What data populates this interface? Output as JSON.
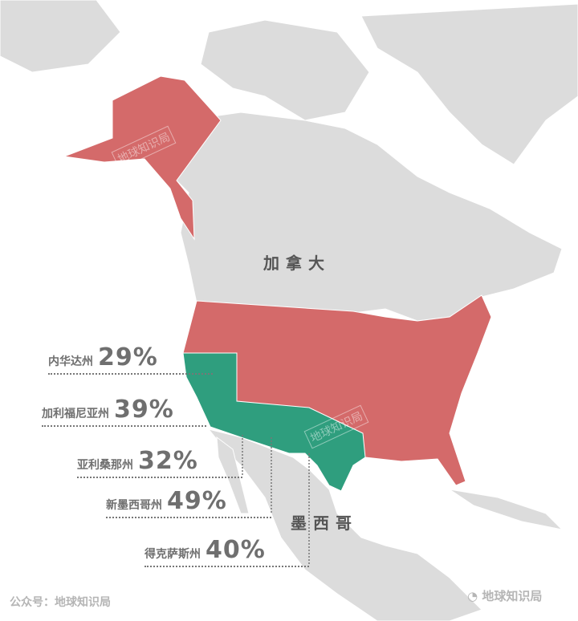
{
  "colors": {
    "land": "#dcdcdc",
    "usa_other": "#d46a6a",
    "highlight": "#2f9e7e",
    "text": "#6f6f6f"
  },
  "countries": {
    "canada": "加拿大",
    "mexico": "墨西哥"
  },
  "states": [
    {
      "name": "内华达州",
      "value": "29%"
    },
    {
      "name": "加利福尼亚州",
      "value": "39%"
    },
    {
      "name": "亚利桑那州",
      "value": "32%"
    },
    {
      "name": "新墨西哥州",
      "value": "49%"
    },
    {
      "name": "得克萨斯州",
      "value": "40%"
    }
  ],
  "watermark": "地球知识局",
  "footer_left": "公众号：地球知识局",
  "footer_right": "地球知识局",
  "footer_icon": "wechat-icon"
}
